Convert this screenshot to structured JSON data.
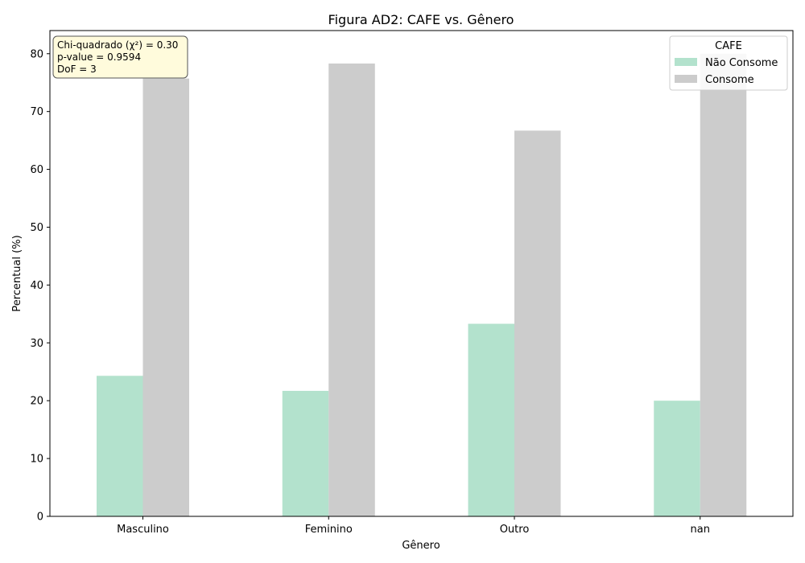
{
  "chart_data": {
    "type": "bar",
    "title": "Figura AD2: CAFE vs. Gênero",
    "xlabel": "Gênero",
    "ylabel": "Percentual (%)",
    "categories": [
      "Masculino",
      "Feminino",
      "Outro",
      "nan"
    ],
    "ylim": [
      0,
      84
    ],
    "yticks": [
      0,
      10,
      20,
      30,
      40,
      50,
      60,
      70,
      80
    ],
    "grid": false,
    "legend": {
      "title": "CAFE",
      "placement": "top-right"
    },
    "series": [
      {
        "name": "Não Consome",
        "color": "#b3e2cd",
        "values": [
          24.3,
          21.7,
          33.3,
          20.0
        ]
      },
      {
        "name": "Consome",
        "color": "#cccccc",
        "values": [
          75.7,
          78.3,
          66.7,
          80.0
        ]
      }
    ],
    "annotation": {
      "placement": "top-left",
      "lines": [
        "Chi-quadrado (χ²) = 0.30",
        "p-value = 0.9594",
        "DoF = 3"
      ]
    }
  }
}
